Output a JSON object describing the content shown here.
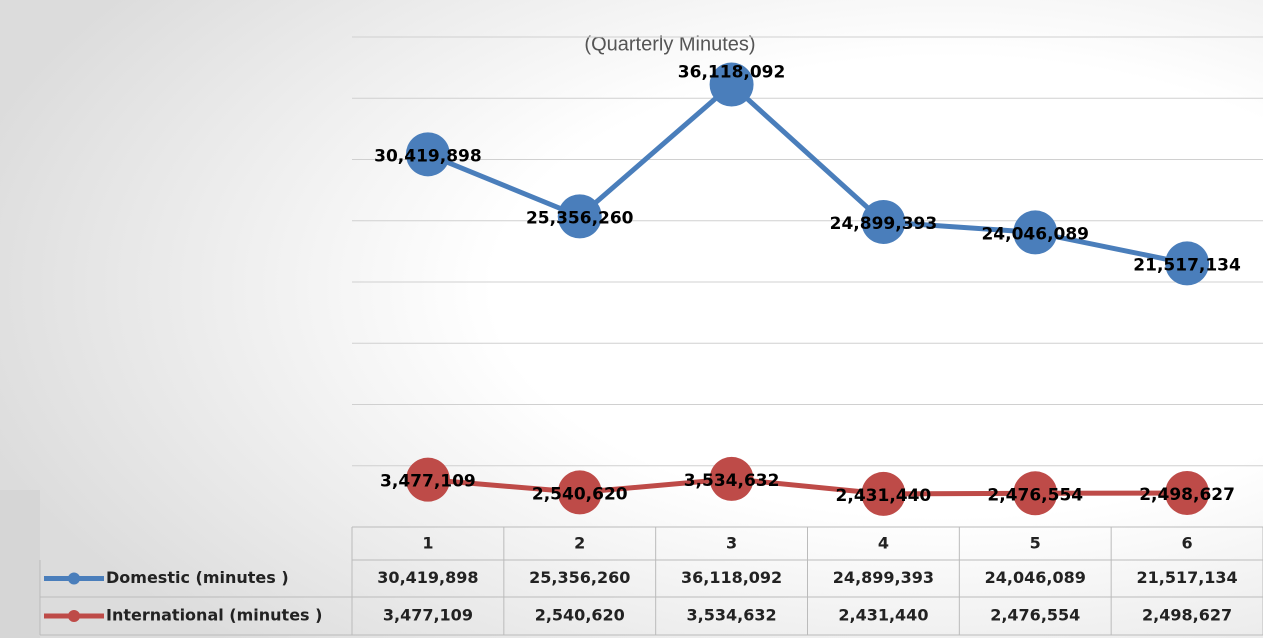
{
  "chart_data": {
    "type": "line",
    "title": "(Quarterly Minutes)",
    "categories": [
      "1",
      "2",
      "3",
      "4",
      "5",
      "6"
    ],
    "series": [
      {
        "name": "Domestic (minutes )",
        "color": "#4a7ebb",
        "values": [
          30419898,
          25356260,
          36118092,
          24899393,
          24046089,
          21517134
        ],
        "value_labels": [
          "30,419,898",
          "25,356,260",
          "36,118,092",
          "24,899,393",
          "24,046,089",
          "21,517,134"
        ]
      },
      {
        "name": "International (minutes )",
        "color": "#be4b48",
        "axis": "y2",
        "values": [
          3477109,
          2540620,
          3534632,
          2431440,
          2476554,
          2498627
        ],
        "value_labels": [
          "3,477,109",
          "2,540,620",
          "3,534,632",
          "2,431,440",
          "2,476,554",
          "2,498,627"
        ]
      }
    ],
    "ylim": [
      0,
      40000000
    ],
    "yticks": [
      0,
      5000000,
      10000000,
      15000000,
      20000000,
      25000000,
      30000000,
      35000000,
      40000000
    ],
    "y2lim": [
      0,
      36000000
    ],
    "grid": true
  }
}
